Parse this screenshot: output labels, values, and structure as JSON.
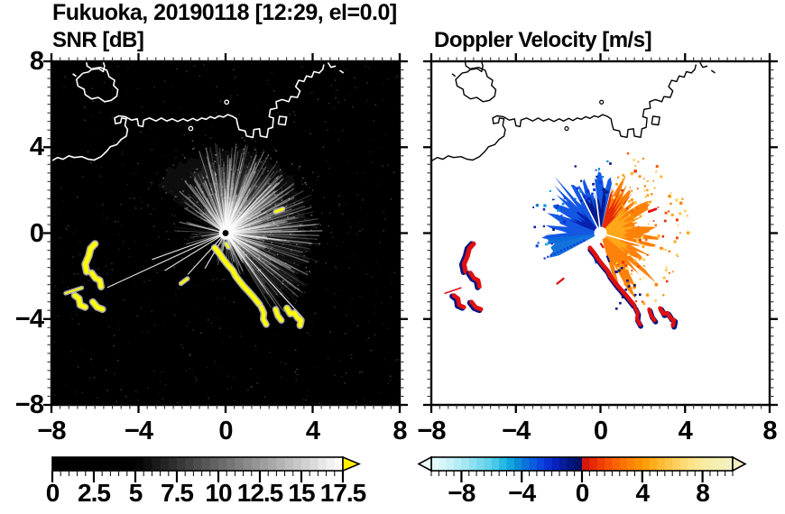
{
  "title": "Fukuoka, 20190118 [12:29, el=0.0]",
  "panels": {
    "snr": {
      "title": "SNR [dB]"
    },
    "vel": {
      "title": "Doppler Velocity [m/s]"
    }
  },
  "axes": {
    "x_ticks": [
      -8,
      -4,
      0,
      4,
      8
    ],
    "y_ticks": [
      8,
      4,
      0,
      -4,
      -8
    ],
    "x_tick_labels": [
      "−8",
      "−4",
      "0",
      "4",
      "8"
    ],
    "y_tick_labels": [
      "8",
      "4",
      "0",
      "−4",
      "−8"
    ],
    "minor_step": 0.4
  },
  "colorbars": {
    "snr": {
      "labels": [
        "0",
        "2.5",
        "5",
        "7.5",
        "10",
        "12.5",
        "15",
        "17.5"
      ],
      "values": [
        0,
        2.5,
        5,
        7.5,
        10,
        12.5,
        15,
        17.5
      ],
      "range": [
        0,
        17.5
      ],
      "segment_step": 0.5,
      "black_below": 5,
      "overflow_arrow_color": "#ffef00"
    },
    "vel": {
      "labels": [
        "−8",
        "−4",
        "0",
        "4",
        "8"
      ],
      "values": [
        -8,
        -4,
        0,
        4,
        8
      ],
      "range": [
        -10,
        10
      ],
      "segment_step": 0.5,
      "stops": [
        [
          -10,
          "#eafcfd"
        ],
        [
          -8,
          "#aeeaf4"
        ],
        [
          -6,
          "#58cfea"
        ],
        [
          -5,
          "#16b2e0"
        ],
        [
          -4,
          "#0a7fd6"
        ],
        [
          -3,
          "#0a50e2"
        ],
        [
          -2,
          "#0826cc"
        ],
        [
          -1,
          "#04188e"
        ],
        [
          -0.02,
          "#020f58"
        ],
        [
          0.02,
          "#d00f0f"
        ],
        [
          1,
          "#ee3300"
        ],
        [
          2,
          "#f85a00"
        ],
        [
          3,
          "#fd7c00"
        ],
        [
          4,
          "#ff9800"
        ],
        [
          5,
          "#ffb42a"
        ],
        [
          6,
          "#ffcb52"
        ],
        [
          7,
          "#ffdf7c"
        ],
        [
          8,
          "#f8eba2"
        ],
        [
          10,
          "#f3efc2"
        ]
      ]
    }
  },
  "chart_data": {
    "type": "heatmap",
    "subtype": "weather-radar-ppi-pair",
    "title": "Fukuoka, 20190118 [12:29, el=0.0]",
    "radar_center": [
      0,
      0
    ],
    "axes": {
      "xlim": [
        -8,
        8
      ],
      "ylim": [
        -8,
        8
      ],
      "major_tick": 4,
      "minor_tick": 0.4
    },
    "panels": [
      {
        "name": "SNR [dB]",
        "background": "#000000",
        "colormap": "black to white grayscale, yellow overflow arrow above 17.5",
        "vmin": 0,
        "vmax": 17.5,
        "colorbar_ticks": [
          0,
          2.5,
          5,
          7.5,
          10,
          12.5,
          15,
          17.5
        ],
        "content": "Radial echo fan centered on radar at (0,0), brightest toward N-NE-E out to ~4.5 km; dark shadow wedge toward SW with thin bright rays; saturated yellow ground-clutter arcs along the SE coastline from (-0.5,-0.7) to (3.4,-4.1) and a western group near (-6.5,-2); white coastline overlay across the top of the domain"
      },
      {
        "name": "Doppler Velocity [m/s]",
        "background": "#ffffff",
        "colormap": "pale cyan to blue to dark navy (negative) | red to orange to pale yellow (positive)",
        "vmin": -10,
        "vmax": 10,
        "colorbar_ticks": [
          -8,
          -4,
          0,
          4,
          8
        ],
        "content": "Dipole velocity couplet around radar: negative (blue/navy, toward radar) sector from W through N; positive (red-orange-yellow, away) sector from NE through SSE, radius ~3 km; ground-clutter arcs rendered red with navy far-side edges; black coastline overlay"
      }
    ]
  },
  "geometry": {
    "coastline": [
      [
        [
          -6.42,
          8.1
        ],
        [
          -6.36,
          7.78
        ],
        [
          -6.12,
          7.62
        ],
        [
          -5.82,
          7.66
        ],
        [
          -5.62,
          7.52
        ],
        [
          -5.56,
          7.78
        ],
        [
          -5.66,
          8.1
        ]
      ],
      [
        [
          -6.55,
          7.45
        ],
        [
          -6.85,
          7.15
        ],
        [
          -6.78,
          6.85
        ],
        [
          -6.5,
          6.7
        ],
        [
          -6.45,
          6.45
        ],
        [
          -6.15,
          6.25
        ],
        [
          -5.85,
          6.32
        ],
        [
          -5.55,
          6.12
        ],
        [
          -5.25,
          6.18
        ],
        [
          -5.0,
          6.38
        ],
        [
          -4.95,
          6.68
        ],
        [
          -5.15,
          6.88
        ],
        [
          -5.1,
          7.12
        ],
        [
          -5.35,
          7.28
        ],
        [
          -5.45,
          7.58
        ],
        [
          -5.75,
          7.72
        ],
        [
          -6.1,
          7.66
        ],
        [
          -6.3,
          7.5
        ],
        [
          -6.55,
          7.45
        ]
      ],
      [
        [
          -7.02,
          7.42
        ],
        [
          -6.86,
          7.3
        ]
      ],
      [
        [
          -8.1,
          3.3
        ],
        [
          -7.72,
          3.52
        ],
        [
          -7.46,
          3.44
        ],
        [
          -7.2,
          3.6
        ],
        [
          -6.95,
          3.52
        ],
        [
          -6.6,
          3.56
        ],
        [
          -6.3,
          3.44
        ],
        [
          -6.04,
          3.4
        ],
        [
          -5.72,
          3.56
        ],
        [
          -5.45,
          3.82
        ],
        [
          -5.3,
          4.02
        ],
        [
          -5.0,
          4.12
        ],
        [
          -4.8,
          4.36
        ],
        [
          -4.56,
          4.52
        ],
        [
          -4.5,
          4.82
        ],
        [
          -4.62,
          5.02
        ],
        [
          -4.56,
          5.32
        ],
        [
          -4.78,
          5.36
        ],
        [
          -4.82,
          5.14
        ],
        [
          -5.06,
          5.1
        ],
        [
          -5.1,
          5.36
        ],
        [
          -4.9,
          5.46
        ],
        [
          -4.6,
          5.42
        ],
        [
          -4.32,
          5.26
        ],
        [
          -4.06,
          5.32
        ],
        [
          -4.0,
          5.0
        ],
        [
          -3.8,
          4.96
        ],
        [
          -3.76,
          5.26
        ],
        [
          -3.5,
          5.36
        ],
        [
          -3.2,
          5.22
        ],
        [
          -2.95,
          5.36
        ],
        [
          -2.7,
          5.22
        ],
        [
          -2.45,
          5.32
        ],
        [
          -2.2,
          5.2
        ],
        [
          -1.95,
          5.32
        ],
        [
          -1.75,
          5.22
        ],
        [
          -1.5,
          5.34
        ],
        [
          -1.3,
          5.24
        ],
        [
          -1.1,
          5.36
        ],
        [
          -0.9,
          5.3
        ],
        [
          -0.7,
          5.42
        ],
        [
          -0.5,
          5.34
        ],
        [
          -0.3,
          5.46
        ],
        [
          -0.1,
          5.4
        ],
        [
          0.1,
          5.52
        ],
        [
          0.32,
          5.44
        ],
        [
          0.5,
          5.32
        ],
        [
          0.55,
          5.05
        ],
        [
          0.62,
          4.82
        ],
        [
          0.9,
          4.76
        ],
        [
          0.96,
          4.52
        ],
        [
          1.26,
          4.46
        ],
        [
          1.3,
          4.82
        ],
        [
          1.56,
          4.86
        ],
        [
          1.6,
          4.52
        ],
        [
          1.9,
          4.46
        ],
        [
          1.96,
          4.86
        ],
        [
          2.16,
          4.92
        ],
        [
          2.2,
          5.36
        ],
        [
          2.0,
          5.42
        ],
        [
          2.06,
          5.76
        ],
        [
          2.36,
          5.82
        ],
        [
          2.32,
          6.12
        ],
        [
          2.6,
          6.22
        ],
        [
          2.9,
          6.12
        ],
        [
          3.0,
          6.36
        ],
        [
          3.3,
          6.32
        ],
        [
          3.42,
          6.62
        ],
        [
          3.22,
          6.82
        ],
        [
          3.36,
          7.12
        ],
        [
          3.6,
          7.06
        ],
        [
          3.72,
          7.32
        ],
        [
          3.96,
          7.26
        ],
        [
          4.06,
          7.52
        ],
        [
          4.3,
          7.46
        ],
        [
          4.46,
          7.62
        ],
        [
          4.52,
          7.85
        ]
      ],
      [
        [
          2.42,
          5.08
        ],
        [
          2.74,
          5.04
        ],
        [
          2.8,
          5.4
        ],
        [
          2.48,
          5.44
        ],
        [
          2.42,
          5.08
        ]
      ],
      [
        [
          4.7,
          7.95
        ],
        [
          4.84,
          7.72
        ],
        [
          5.06,
          7.78
        ]
      ],
      [
        [
          5.24,
          7.58
        ],
        [
          5.42,
          7.46
        ]
      ]
    ],
    "coast_dots": [
      [
        -1.6,
        4.87
      ],
      [
        0.05,
        6.1
      ]
    ],
    "clutter": [
      {
        "pts": [
          [
            -6.0,
            -0.5
          ],
          [
            -6.2,
            -0.72
          ],
          [
            -6.28,
            -1.05
          ],
          [
            -6.45,
            -1.45
          ],
          [
            -6.38,
            -1.8
          ]
        ],
        "w": 0.22
      },
      {
        "pts": [
          [
            -6.15,
            -1.85
          ],
          [
            -5.98,
            -2.1
          ],
          [
            -5.78,
            -2.2
          ],
          [
            -5.72,
            -2.5
          ]
        ],
        "w": 0.2
      },
      {
        "pts": [
          [
            -6.93,
            -2.9
          ],
          [
            -6.73,
            -3.05
          ],
          [
            -6.68,
            -3.35
          ],
          [
            -6.45,
            -3.45
          ]
        ],
        "w": 0.2
      },
      {
        "pts": [
          [
            -6.1,
            -3.2
          ],
          [
            -5.9,
            -3.45
          ],
          [
            -5.65,
            -3.55
          ]
        ],
        "w": 0.2
      },
      {
        "pts": [
          [
            -7.35,
            -2.8
          ],
          [
            -6.6,
            -2.55
          ]
        ],
        "w": 0.07
      },
      {
        "pts": [
          [
            2.3,
            1.0
          ],
          [
            2.62,
            1.12
          ]
        ],
        "w": 0.12
      },
      {
        "pts": [
          [
            -2.05,
            -2.35
          ],
          [
            -1.75,
            -2.12
          ]
        ],
        "w": 0.1
      },
      {
        "pts": [
          [
            -0.5,
            -0.68
          ],
          [
            -0.28,
            -0.95
          ],
          [
            -0.1,
            -1.22
          ],
          [
            0.12,
            -1.5
          ],
          [
            0.33,
            -1.74
          ],
          [
            0.46,
            -2.0
          ],
          [
            0.63,
            -2.22
          ],
          [
            0.82,
            -2.46
          ],
          [
            1.06,
            -2.72
          ],
          [
            1.3,
            -3.0
          ],
          [
            1.56,
            -3.32
          ]
        ],
        "w": 0.2
      },
      {
        "pts": [
          [
            1.64,
            -3.46
          ],
          [
            1.76,
            -3.72
          ],
          [
            1.73,
            -4.0
          ],
          [
            1.87,
            -4.26
          ]
        ],
        "w": 0.18
      },
      {
        "pts": [
          [
            2.3,
            -3.55
          ],
          [
            2.4,
            -3.85
          ],
          [
            2.56,
            -4.06
          ]
        ],
        "w": 0.18
      },
      {
        "pts": [
          [
            2.82,
            -3.5
          ],
          [
            2.97,
            -3.76
          ],
          [
            3.16,
            -3.72
          ],
          [
            3.32,
            -3.96
          ],
          [
            3.47,
            -4.06
          ],
          [
            3.42,
            -4.3
          ]
        ],
        "w": 0.2
      },
      {
        "pts": [
          [
            0.02,
            -0.5
          ],
          [
            0.13,
            -0.66
          ]
        ],
        "w": 0.1
      }
    ],
    "snr_ray_sectors": [
      {
        "a0": -58,
        "a1": -18,
        "maxR": 3.1,
        "n": 55
      },
      {
        "a0": -18,
        "a1": 30,
        "maxR": 4.3,
        "n": 110
      },
      {
        "a0": 30,
        "a1": 60,
        "maxR": 4.0,
        "n": 70
      },
      {
        "a0": 60,
        "a1": 95,
        "maxR": 4.5,
        "n": 60
      },
      {
        "a0": 95,
        "a1": 150,
        "maxR": 4.6,
        "n": 95
      },
      {
        "a0": 150,
        "a1": 170,
        "maxR": 2.2,
        "n": 18
      },
      {
        "a0": 170,
        "a1": 206,
        "maxR": 1.6,
        "n": 12
      },
      {
        "a0": 252,
        "a1": 302,
        "maxR": 2.4,
        "n": 16
      }
    ],
    "snr_bright_rays": [
      {
        "az": 245,
        "r": 6.0
      },
      {
        "az": 250,
        "r": 3.6
      },
      {
        "az": 238,
        "r": 3.3
      },
      {
        "az": 222,
        "r": 2.6
      },
      {
        "az": 210,
        "r": 1.9
      },
      {
        "az": 138,
        "r": 5.3
      }
    ],
    "vel_fan": {
      "blue": {
        "a0": -102,
        "a1": 14,
        "base": 1.5,
        "jit": 1.2,
        "spike": 0.9,
        "v": -3
      },
      "orange": {
        "a0": 14,
        "a1": 166,
        "base": 1.5,
        "jit": 1.3,
        "spike": 1.1,
        "v": 3
      },
      "inner_orange": {
        "a0": 36,
        "a1": 130,
        "base": 0.9,
        "jit": 0.9,
        "spike": 0,
        "v": 4.6
      },
      "red_overlay": {
        "a0": 14,
        "a1": 44,
        "base": 0.9,
        "jit": 1.5,
        "spike": 0.6,
        "v": 0.7
      },
      "navy_overlay": {
        "a0": -26,
        "a1": 10,
        "base": 1.0,
        "jit": 1.1,
        "spike": 0.5,
        "v": -0.9
      },
      "blue_wedge": {
        "a0": -118,
        "a1": -94,
        "base": 2.2,
        "jit": 0.5,
        "spike": 0,
        "v": -3.6
      },
      "navy_small": {
        "a0": -70,
        "a1": -40,
        "base": 0.8,
        "jit": 0.9,
        "spike": 0,
        "v": -1.5
      },
      "white_gap_rays": [
        -27,
        -7,
        106
      ],
      "dotted_ray_az": 246
    },
    "colors": {
      "snr_bg": "#000000",
      "vel_bg": "#ffffff",
      "coast_snr": "#ffffff",
      "coast_vel": "#000000",
      "clutter_core": "#ffff00",
      "clutter_halo": "#c8c8c8",
      "clutter_red": "#e01010",
      "clutter_navy": "#051580"
    }
  }
}
